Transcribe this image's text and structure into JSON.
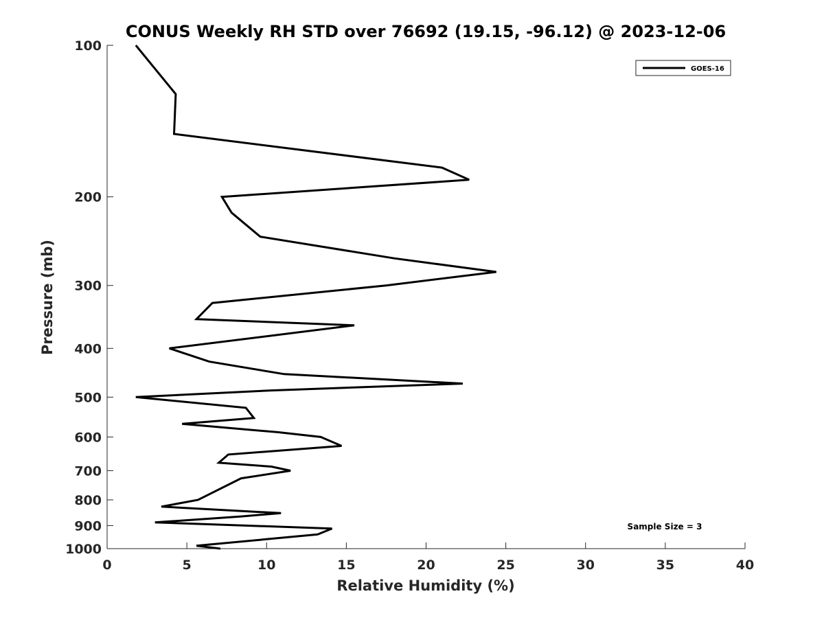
{
  "chart_data": {
    "type": "line",
    "title": "CONUS Weekly RH STD over 76692 (19.15, -96.12) @ 2023-12-06",
    "xlabel": "Relative Humidity (%)",
    "ylabel": "Pressure (mb)",
    "xlim": [
      0,
      40
    ],
    "ylim": [
      100,
      1000
    ],
    "yscale": "log",
    "y_reversed": true,
    "x_ticks": [
      "0",
      "5",
      "10",
      "15",
      "20",
      "25",
      "30",
      "35",
      "40"
    ],
    "y_ticks": [
      "100",
      "200",
      "300",
      "400",
      "500",
      "600",
      "700",
      "800",
      "900",
      "1000"
    ],
    "grid": false,
    "legend_position": "top-right",
    "annotation": "Sample Size = 3",
    "series": [
      {
        "name": "GOES-16",
        "color": "#000000",
        "x": [
          1.8,
          4.3,
          4.2,
          21.0,
          22.7,
          7.2,
          7.8,
          9.6,
          18.0,
          24.4,
          17.5,
          6.6,
          5.6,
          15.5,
          3.9,
          6.4,
          11.1,
          22.3,
          10.3,
          1.8,
          8.7,
          9.2,
          4.7,
          10.7,
          13.4,
          14.7,
          7.6,
          7.0,
          10.3,
          11.5,
          8.4,
          5.7,
          3.4,
          10.9,
          8.4,
          3.0,
          14.1,
          13.2,
          5.6,
          7.1
        ],
        "y": [
          100,
          125,
          150,
          175,
          185,
          200,
          215,
          240,
          265,
          282,
          300,
          325,
          350,
          360,
          400,
          425,
          450,
          470,
          485,
          500,
          525,
          550,
          565,
          587,
          600,
          625,
          650,
          675,
          687,
          700,
          725,
          800,
          825,
          850,
          863,
          887,
          912,
          937,
          987,
          1000
        ]
      }
    ]
  }
}
